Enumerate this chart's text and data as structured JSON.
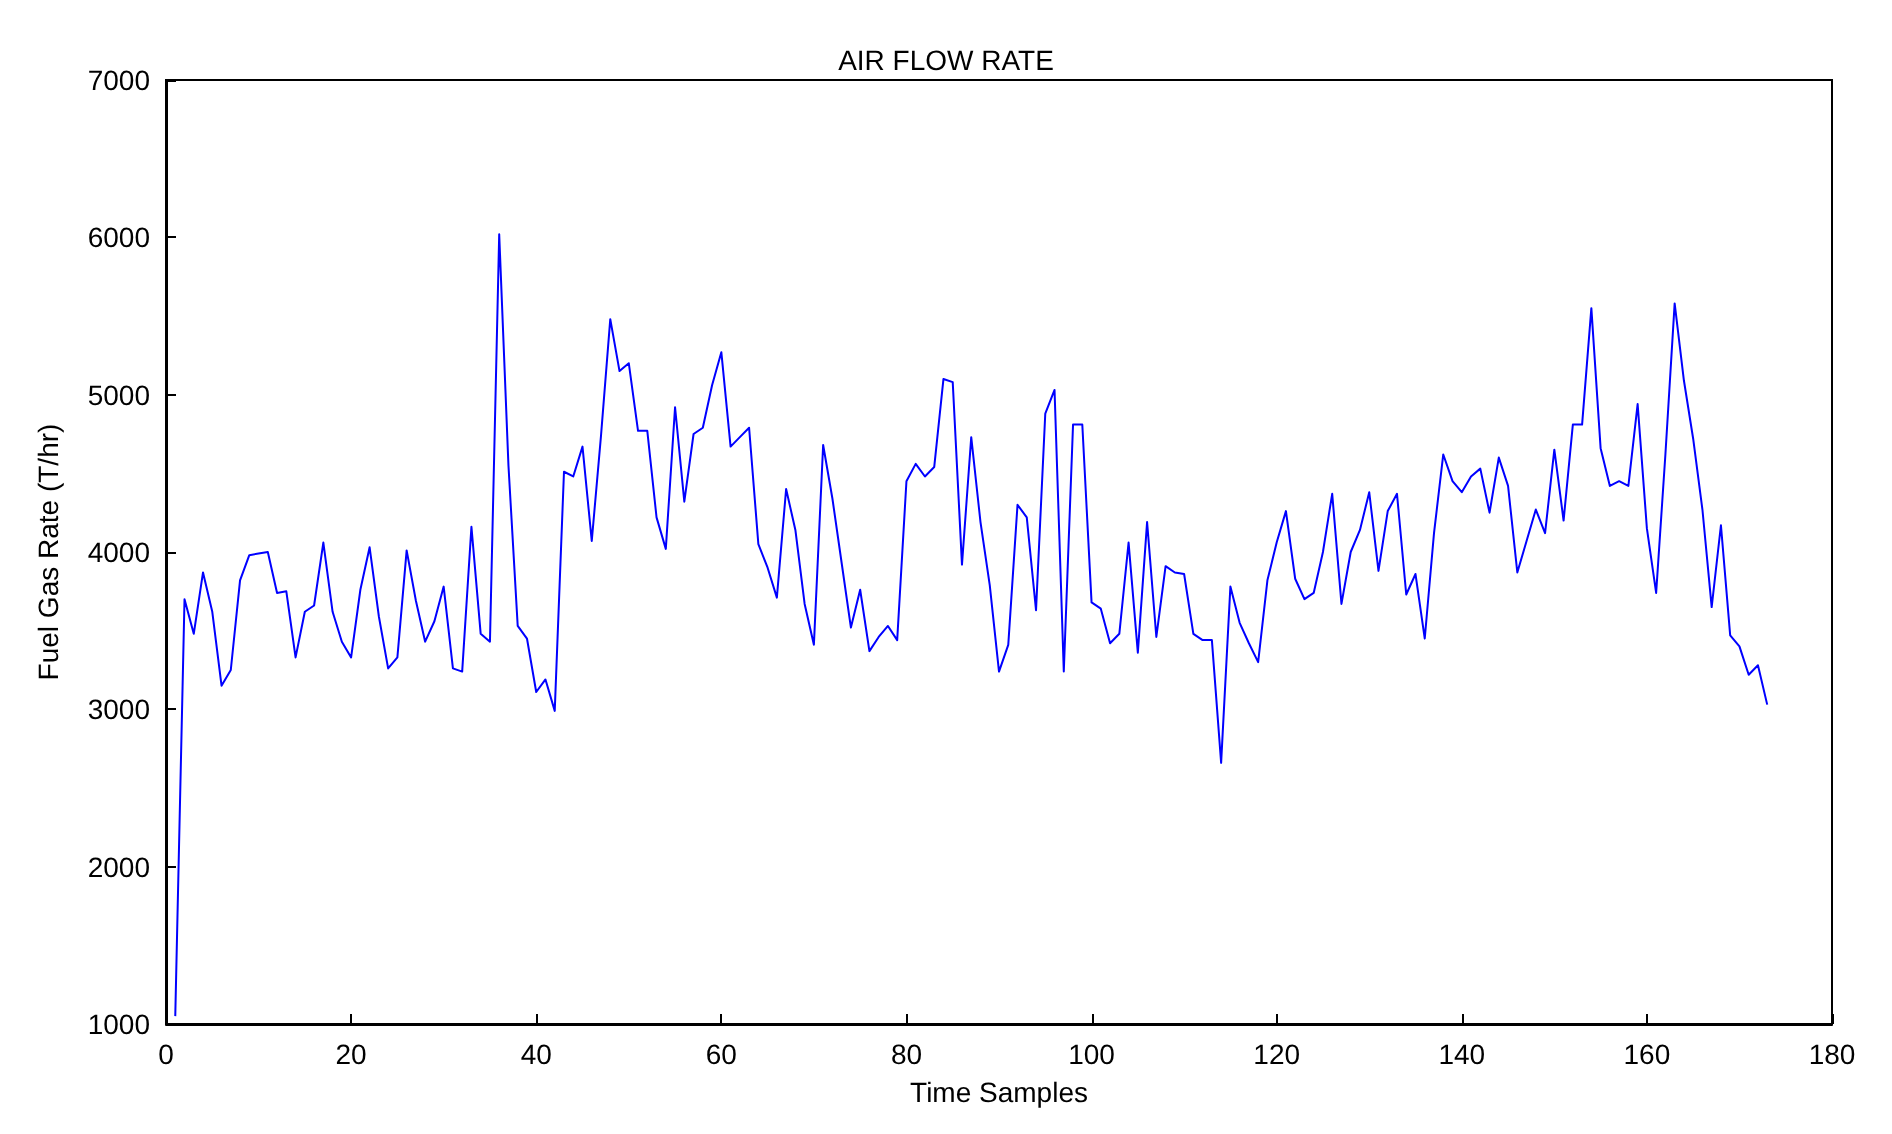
{
  "chart_data": {
    "type": "line",
    "title": "AIR FLOW RATE",
    "xlabel": "Time Samples",
    "ylabel": "Fuel Gas Rate (T/hr)",
    "x": [
      1,
      2,
      3,
      4,
      5,
      6,
      7,
      8,
      9,
      10,
      11,
      12,
      13,
      14,
      15,
      16,
      17,
      18,
      19,
      20,
      21,
      22,
      23,
      24,
      25,
      26,
      27,
      28,
      29,
      30,
      31,
      32,
      33,
      34,
      35,
      36,
      37,
      38,
      39,
      40,
      41,
      42,
      43,
      44,
      45,
      46,
      47,
      48,
      49,
      50,
      51,
      52,
      53,
      54,
      55,
      56,
      57,
      58,
      59,
      60,
      61,
      62,
      63,
      64,
      65,
      66,
      67,
      68,
      69,
      70,
      71,
      72,
      73,
      74,
      75,
      76,
      77,
      78,
      79,
      80,
      81,
      82,
      83,
      84,
      85,
      86,
      87,
      88,
      89,
      90,
      91,
      92,
      93,
      94,
      95,
      96,
      97,
      98,
      99,
      100,
      101,
      102,
      103,
      104,
      105,
      106,
      107,
      108,
      109,
      110,
      111,
      112,
      113,
      114,
      115,
      116,
      117,
      118,
      119,
      120,
      121,
      122,
      123,
      124,
      125,
      126,
      127,
      128,
      129,
      130,
      131,
      132,
      133,
      134,
      135,
      136,
      137,
      138,
      139,
      140,
      141,
      142,
      143,
      144,
      145,
      146,
      147,
      148,
      149,
      150,
      151,
      152,
      153,
      154,
      155,
      156,
      157,
      158,
      159,
      160,
      161,
      162,
      163,
      164,
      165,
      166,
      167,
      168,
      169,
      170,
      171,
      172,
      173
    ],
    "series": [
      {
        "color": "#0000ff",
        "values": [
          1050,
          3700,
          3480,
          3870,
          3620,
          3150,
          3250,
          3820,
          3980,
          3990,
          4000,
          3740,
          3750,
          3330,
          3620,
          3660,
          4060,
          3620,
          3430,
          3330,
          3760,
          4030,
          3590,
          3260,
          3330,
          4010,
          3690,
          3430,
          3560,
          3780,
          3260,
          3240,
          4160,
          3480,
          3430,
          6020,
          4550,
          3530,
          3450,
          3110,
          3190,
          2990,
          4510,
          4480,
          4670,
          4070,
          4740,
          5480,
          5150,
          5200,
          4770,
          4770,
          4220,
          4020,
          4920,
          4320,
          4750,
          4790,
          5060,
          5270,
          4670,
          4730,
          4790,
          4050,
          3900,
          3710,
          4400,
          4140,
          3670,
          3410,
          4680,
          4340,
          3930,
          3520,
          3760,
          3370,
          3460,
          3530,
          3440,
          4450,
          4560,
          4480,
          4540,
          5100,
          5080,
          3920,
          4730,
          4190,
          3790,
          3240,
          3410,
          4300,
          4220,
          3630,
          4880,
          5030,
          3240,
          4810,
          4810,
          3680,
          3640,
          3420,
          3480,
          4060,
          3360,
          4190,
          3460,
          3910,
          3870,
          3860,
          3480,
          3440,
          3440,
          2660,
          3780,
          3550,
          3420,
          3300,
          3820,
          4060,
          4260,
          3830,
          3700,
          3740,
          4000,
          4370,
          3670,
          4000,
          4140,
          4380,
          3880,
          4260,
          4370,
          3730,
          3860,
          3450,
          4120,
          4620,
          4450,
          4380,
          4480,
          4530,
          4250,
          4600,
          4420,
          3870,
          4070,
          4270,
          4120,
          4650,
          4200,
          4810,
          4810,
          5550,
          4660,
          4420,
          4450,
          4420,
          4940,
          4150,
          3740,
          4620,
          5580,
          5090,
          4720,
          4270,
          3650,
          4170,
          3470,
          3400,
          3220,
          3280,
          3030
        ]
      }
    ],
    "xlim": [
      0,
      180
    ],
    "xticks": [
      0,
      20,
      40,
      60,
      80,
      100,
      120,
      140,
      160,
      180
    ],
    "ylim": [
      1000,
      7000
    ],
    "yticks": [
      1000,
      2000,
      3000,
      4000,
      5000,
      6000,
      7000
    ],
    "grid": false,
    "marker": "none",
    "line_style": "solid"
  }
}
